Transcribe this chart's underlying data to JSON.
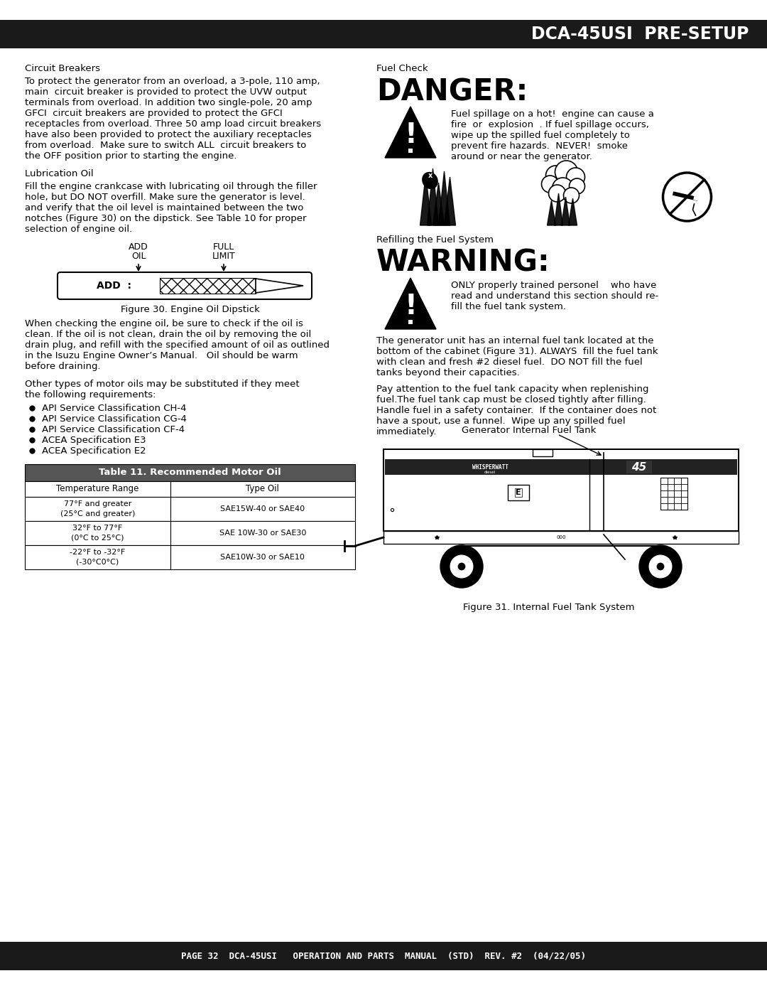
{
  "title_bar_text": "DCA-45USI  PRE-SETUP",
  "title_bar_color": "#1a1a1a",
  "title_text_color": "#ffffff",
  "footer_bar_text": "PAGE 32  DCA-45USI   OPERATION AND PARTS  MANUAL  (STD)  REV. #2  (04/22/05)",
  "footer_bar_color": "#1a1a1a",
  "footer_text_color": "#ffffff",
  "background_color": "#ffffff",
  "left_column": {
    "section1_title": "Circuit Breakers",
    "section1_body_lines": [
      "To protect the generator from an overload, a 3-pole, 110 amp,",
      "main  circuit breaker is provided to protect the UVW output",
      "terminals from overload. In addition two single-pole, 20 amp",
      "GFCI  circuit breakers are provided to protect the GFCI",
      "receptacles from overload. Three 50 amp load circuit breakers",
      "have also been provided to protect the auxiliary receptacles",
      "from overload.  Make sure to switch ALL  circuit breakers to",
      "the OFF position prior to starting the engine."
    ],
    "section2_title": "Lubrication Oil",
    "section2_body_lines": [
      "Fill the engine crankcase with lubricating oil through the filler",
      "hole, but DO NOT overfill. Make sure the generator is level.",
      "and verify that the oil level is maintained between the two",
      "notches (Figure 30) on the dipstick. See Table 10 for proper",
      "selection of engine oil."
    ],
    "figure30_caption": "Figure 30. Engine Oil Dipstick",
    "section2b_body_lines": [
      "When checking the engine oil, be sure to check if the oil is",
      "clean. If the oil is not clean, drain the oil by removing the oil",
      "drain plug, and refill with the specified amount of oil as outlined",
      "in the Isuzu Engine Owner’s Manual.   Oil should be warm",
      "before draining."
    ],
    "section2c_body_lines": [
      "Other types of motor oils may be substituted if they meet",
      "the following requirements:"
    ],
    "bullets": [
      "API Service Classification CH-4",
      "API Service Classification CG-4",
      "API Service Classification CF-4",
      "ACEA Specification E3",
      "ACEA Specification E2"
    ],
    "table_title": "Table 11. Recommended Motor Oil",
    "table_col1": "Temperature Range",
    "table_col2": "Type Oil",
    "table_rows": [
      [
        "77°F and greater\n(25°C and greater)",
        "SAE15W-40 or SAE40"
      ],
      [
        "32°F to 77°F\n(0°C to 25°C)",
        "SAE 10W-30 or SAE30"
      ],
      [
        "-22°F to -32°F\n(-30°C0°C)",
        "SAE10W-30 or SAE10"
      ]
    ]
  },
  "right_column": {
    "fuel_check_title": "Fuel Check",
    "danger_text": "DANGER:",
    "danger_body_lines": [
      "Fuel spillage on a hot!  engine can cause a",
      "fire  or  explosion  . If fuel spillage occurs,",
      "wipe up the spilled fuel completely to",
      "prevent fire hazards.  NEVER!  smoke",
      "around or near the generator."
    ],
    "refilling_title": "Refilling the Fuel System",
    "warning_text": "WARNING:",
    "warning_body_lines": [
      "ONLY properly trained personel    who have",
      "read and understand this section should re-",
      "fill the fuel tank system."
    ],
    "para1_lines": [
      "The generator unit has an internal fuel tank located at the",
      "bottom of the cabinet (Figure 31). ALWAYS  fill the fuel tank",
      "with clean and fresh #2 diesel fuel.  DO NOT fill the fuel",
      "tanks beyond their capacities."
    ],
    "para2_lines": [
      "Pay attention to the fuel tank capacity when replenishing",
      "fuel.The fuel tank cap must be closed tightly after filling.",
      "Handle fuel in a safety container.  If the container does not",
      "have a spout, use a funnel.  Wipe up any spilled fuel",
      "immediately."
    ],
    "figure31_caption_label": "Generator Internal Fuel Tank",
    "figure31_caption": "Figure 31. Internal Fuel Tank System"
  }
}
